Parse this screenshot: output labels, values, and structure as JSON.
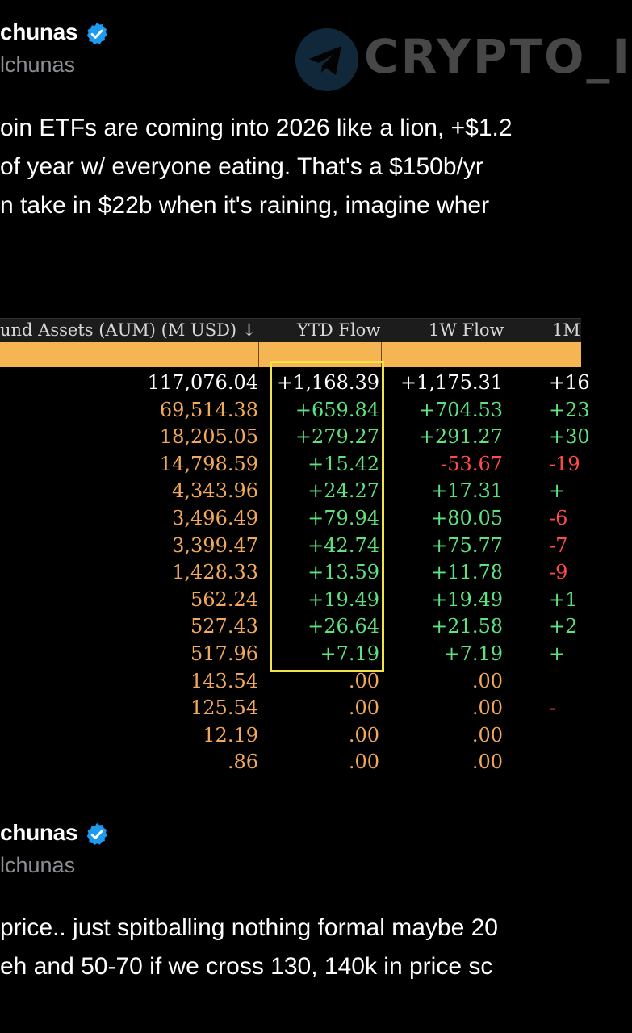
{
  "tweet1": {
    "name": "chunas",
    "handle": "lchunas",
    "lines": [
      "oin ETFs are coming into 2026 like a lion, +$1.2",
      " of year w/ everyone eating. That's a $150b/yr",
      "n take in $22b when it's raining, imagine wher"
    ]
  },
  "watermark": {
    "text": "CRYPTO_I"
  },
  "table": {
    "headers": {
      "aum": "und Assets (AUM) (M USD) ↓",
      "ytd": "YTD Flow",
      "w1": "1W Flow",
      "m1": "1M"
    },
    "rows": [
      {
        "aum": "117,076.04",
        "ytd": "+1,168.39",
        "w1": "+1,175.31",
        "m1": "+16",
        "aum_color": "white",
        "ytd_color": "white",
        "w1_color": "white",
        "m1_color": "white"
      },
      {
        "aum": "69,514.38",
        "ytd": "+659.84",
        "w1": "+704.53",
        "m1": "+23",
        "aum_color": "orange",
        "ytd_color": "green",
        "w1_color": "green",
        "m1_color": "green"
      },
      {
        "aum": "18,205.05",
        "ytd": "+279.27",
        "w1": "+291.27",
        "m1": "+30",
        "aum_color": "orange",
        "ytd_color": "green",
        "w1_color": "green",
        "m1_color": "green"
      },
      {
        "aum": "14,798.59",
        "ytd": "+15.42",
        "w1": "-53.67",
        "m1": "-19",
        "aum_color": "orange",
        "ytd_color": "green",
        "w1_color": "red",
        "m1_color": "red"
      },
      {
        "aum": "4,343.96",
        "ytd": "+24.27",
        "w1": "+17.31",
        "m1": "+",
        "aum_color": "orange",
        "ytd_color": "green",
        "w1_color": "green",
        "m1_color": "green"
      },
      {
        "aum": "3,496.49",
        "ytd": "+79.94",
        "w1": "+80.05",
        "m1": "-6",
        "aum_color": "orange",
        "ytd_color": "green",
        "w1_color": "green",
        "m1_color": "red"
      },
      {
        "aum": "3,399.47",
        "ytd": "+42.74",
        "w1": "+75.77",
        "m1": "-7",
        "aum_color": "orange",
        "ytd_color": "green",
        "w1_color": "green",
        "m1_color": "red"
      },
      {
        "aum": "1,428.33",
        "ytd": "+13.59",
        "w1": "+11.78",
        "m1": "-9",
        "aum_color": "orange",
        "ytd_color": "green",
        "w1_color": "green",
        "m1_color": "red"
      },
      {
        "aum": "562.24",
        "ytd": "+19.49",
        "w1": "+19.49",
        "m1": "+1",
        "aum_color": "orange",
        "ytd_color": "green",
        "w1_color": "green",
        "m1_color": "green"
      },
      {
        "aum": "527.43",
        "ytd": "+26.64",
        "w1": "+21.58",
        "m1": "+2",
        "aum_color": "orange",
        "ytd_color": "green",
        "w1_color": "green",
        "m1_color": "green"
      },
      {
        "aum": "517.96",
        "ytd": "+7.19",
        "w1": "+7.19",
        "m1": "+",
        "aum_color": "orange",
        "ytd_color": "green",
        "w1_color": "green",
        "m1_color": "green"
      },
      {
        "aum": "143.54",
        "ytd": ".00",
        "w1": ".00",
        "m1": "",
        "aum_color": "orange",
        "ytd_color": "orange",
        "w1_color": "orange",
        "m1_color": "orange"
      },
      {
        "aum": "125.54",
        "ytd": ".00",
        "w1": ".00",
        "m1": "-",
        "aum_color": "orange",
        "ytd_color": "orange",
        "w1_color": "orange",
        "m1_color": "red"
      },
      {
        "aum": "12.19",
        "ytd": ".00",
        "w1": ".00",
        "m1": "",
        "aum_color": "orange",
        "ytd_color": "orange",
        "w1_color": "orange",
        "m1_color": "orange"
      },
      {
        "aum": ".86",
        "ytd": ".00",
        "w1": ".00",
        "m1": "",
        "aum_color": "orange",
        "ytd_color": "orange",
        "w1_color": "orange",
        "m1_color": "orange"
      }
    ]
  },
  "tweet2": {
    "name": "chunas",
    "handle": "lchunas",
    "lines": [
      "price.. just spitballing nothing formal maybe 20",
      "eh and 50-70 if we cross 130, 140k in price sc"
    ]
  },
  "colors": {
    "verified": "#1d9bf0",
    "header_bar": "#f6b553",
    "highlight_box": "#f2e447"
  }
}
